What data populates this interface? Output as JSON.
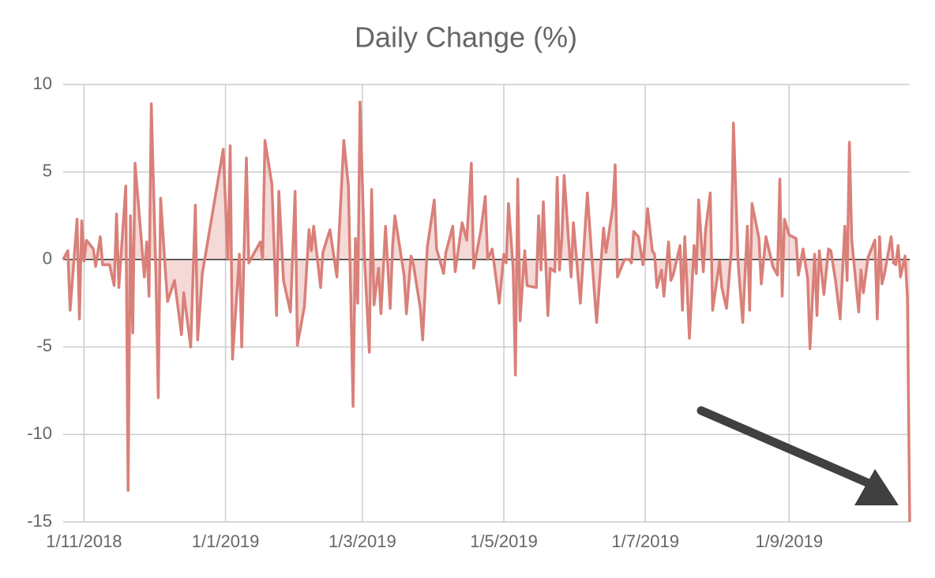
{
  "chart_data": {
    "type": "line",
    "title": "Daily Change (%)",
    "x": [
      "2018-10-23",
      "2018-10-25",
      "2018-10-26",
      "2018-10-29",
      "2018-10-30",
      "2018-10-31",
      "2018-11-01",
      "2018-11-02",
      "2018-11-05",
      "2018-11-06",
      "2018-11-08",
      "2018-11-09",
      "2018-11-12",
      "2018-11-14",
      "2018-11-15",
      "2018-11-16",
      "2018-11-19",
      "2018-11-20",
      "2018-11-21",
      "2018-11-22",
      "2018-11-23",
      "2018-11-27",
      "2018-11-28",
      "2018-11-29",
      "2018-11-30",
      "2018-12-02",
      "2018-12-03",
      "2018-12-04",
      "2018-12-06",
      "2018-12-07",
      "2018-12-10",
      "2018-12-13",
      "2018-12-14",
      "2018-12-17",
      "2018-12-19",
      "2018-12-20",
      "2018-12-22",
      "2018-12-31",
      "2019-01-02",
      "2019-01-03",
      "2019-01-04",
      "2019-01-07",
      "2019-01-08",
      "2019-01-10",
      "2019-01-11",
      "2019-01-16",
      "2019-01-17",
      "2019-01-18",
      "2019-01-21",
      "2019-01-23",
      "2019-01-24",
      "2019-01-26",
      "2019-01-29",
      "2019-01-31",
      "2019-02-01",
      "2019-02-04",
      "2019-02-06",
      "2019-02-07",
      "2019-02-08",
      "2019-02-11",
      "2019-02-12",
      "2019-02-15",
      "2019-02-18",
      "2019-02-21",
      "2019-02-23",
      "2019-02-25",
      "2019-02-26",
      "2019-02-27",
      "2019-02-28",
      "2019-03-02",
      "2019-03-04",
      "2019-03-05",
      "2019-03-06",
      "2019-03-08",
      "2019-03-09",
      "2019-03-11",
      "2019-03-13",
      "2019-03-14",
      "2019-03-15",
      "2019-03-19",
      "2019-03-20",
      "2019-03-22",
      "2019-03-23",
      "2019-03-26",
      "2019-03-27",
      "2019-03-29",
      "2019-04-01",
      "2019-04-02",
      "2019-04-05",
      "2019-04-06",
      "2019-04-09",
      "2019-04-10",
      "2019-04-13",
      "2019-04-15",
      "2019-04-17",
      "2019-04-18",
      "2019-04-21",
      "2019-04-23",
      "2019-04-24",
      "2019-04-26",
      "2019-04-29",
      "2019-05-01",
      "2019-05-02",
      "2019-05-03",
      "2019-05-05",
      "2019-05-06",
      "2019-05-07",
      "2019-05-08",
      "2019-05-10",
      "2019-05-11",
      "2019-05-15",
      "2019-05-16",
      "2019-05-17",
      "2019-05-18",
      "2019-05-20",
      "2019-05-21",
      "2019-05-23",
      "2019-05-24",
      "2019-05-25",
      "2019-05-26",
      "2019-05-27",
      "2019-05-30",
      "2019-05-31",
      "2019-06-03",
      "2019-06-06",
      "2019-06-08",
      "2019-06-10",
      "2019-06-13",
      "2019-06-14",
      "2019-06-17",
      "2019-06-18",
      "2019-06-19",
      "2019-06-22",
      "2019-06-24",
      "2019-06-25",
      "2019-06-26",
      "2019-06-28",
      "2019-06-30",
      "2019-07-02",
      "2019-07-04",
      "2019-07-05",
      "2019-07-06",
      "2019-07-08",
      "2019-07-09",
      "2019-07-11",
      "2019-07-12",
      "2019-07-13",
      "2019-07-16",
      "2019-07-17",
      "2019-07-18",
      "2019-07-20",
      "2019-07-22",
      "2019-07-23",
      "2019-07-24",
      "2019-07-26",
      "2019-07-27",
      "2019-07-29",
      "2019-07-30",
      "2019-08-02",
      "2019-08-03",
      "2019-08-05",
      "2019-08-07",
      "2019-08-08",
      "2019-08-10",
      "2019-08-12",
      "2019-08-14",
      "2019-08-15",
      "2019-08-16",
      "2019-08-19",
      "2019-08-20",
      "2019-08-22",
      "2019-08-25",
      "2019-08-27",
      "2019-08-28",
      "2019-08-29",
      "2019-08-30",
      "2019-09-01",
      "2019-09-04",
      "2019-09-05",
      "2019-09-07",
      "2019-09-09",
      "2019-09-10",
      "2019-09-12",
      "2019-09-13",
      "2019-09-14",
      "2019-09-16",
      "2019-09-18",
      "2019-09-19",
      "2019-09-21",
      "2019-09-23",
      "2019-09-25",
      "2019-09-26",
      "2019-09-27",
      "2019-09-28",
      "2019-10-01",
      "2019-10-02",
      "2019-10-03",
      "2019-10-05",
      "2019-10-08",
      "2019-10-09",
      "2019-10-10",
      "2019-10-11",
      "2019-10-12",
      "2019-10-15",
      "2019-10-16",
      "2019-10-17",
      "2019-10-18",
      "2019-10-19",
      "2019-10-21",
      "2019-10-22",
      "2019-10-23"
    ],
    "values": [
      0,
      0.5,
      -2.9,
      2.3,
      -3.4,
      2.2,
      -0.1,
      1.1,
      0.6,
      -0.4,
      1.3,
      -0.3,
      -0.3,
      -1.5,
      2.6,
      -1.6,
      4.2,
      -13.2,
      2.5,
      -4.2,
      5.5,
      -1,
      1,
      -2.1,
      8.9,
      -1,
      -7.9,
      3.5,
      -0.5,
      -2.4,
      -1.2,
      -4.3,
      -1.9,
      -5,
      3.1,
      -4.6,
      -0.8,
      6.3,
      0,
      6.5,
      -5.7,
      0.3,
      -5,
      5.8,
      -0.2,
      1,
      0,
      6.8,
      4.3,
      -3.2,
      3.9,
      -1.2,
      -3,
      3.9,
      -4.9,
      -2.7,
      1.7,
      0.5,
      1.9,
      -1.6,
      0.4,
      1.7,
      -1,
      6.8,
      4.2,
      -8.4,
      1.2,
      -2.5,
      9,
      -0.1,
      -5.3,
      4,
      -2.6,
      -0.5,
      -3.1,
      1.9,
      -2.8,
      0.7,
      2.5,
      -0.9,
      -3.1,
      0.2,
      -0.3,
      -2.8,
      -4.6,
      0.7,
      3.4,
      0.6,
      -0.8,
      0.4,
      1.9,
      -0.7,
      2.1,
      1.1,
      5.5,
      -0.5,
      1.6,
      3.6,
      0,
      0.6,
      -2.5,
      0.3,
      -0.2,
      3.2,
      -0.5,
      -6.6,
      4.6,
      -3.5,
      0.5,
      -1.5,
      -1.6,
      2.5,
      -0.6,
      3.3,
      -3.2,
      -0.5,
      -0.7,
      4.7,
      -0.6,
      1.2,
      4.8,
      -1,
      2.1,
      -2.5,
      3.8,
      0,
      -3.6,
      1.8,
      0.4,
      3,
      5.4,
      -1,
      0,
      0,
      -0.2,
      1.6,
      1.3,
      -0.3,
      2.9,
      0.5,
      0.3,
      -1.6,
      -0.6,
      -2.1,
      1,
      -1.2,
      -0.9,
      0.8,
      -2.9,
      1.3,
      -4.5,
      0.8,
      -0.8,
      3.4,
      -0.7,
      1.7,
      3.8,
      -2.9,
      -0.1,
      -1.6,
      -2.8,
      0.4,
      7.8,
      -0.2,
      -3.6,
      1.9,
      -2.9,
      3.2,
      1.2,
      -1.4,
      1.3,
      -0.4,
      -0.9,
      4.6,
      -2.1,
      2.3,
      1.4,
      1.2,
      -0.9,
      0.6,
      -1.1,
      -5.1,
      0.3,
      -3.2,
      0.5,
      -2,
      0.6,
      0.5,
      -1.2,
      -3.4,
      1.9,
      -1.2,
      6.7,
      1.1,
      -3,
      -0.6,
      -1.9,
      0.1,
      1.1,
      -3.4,
      1.3,
      -1.4,
      -0.9,
      1.3,
      -0.2,
      -0.3,
      0.8,
      -1,
      0.2,
      -2.2,
      -15
    ],
    "color": "#d98079",
    "xlim": [
      "2018-10-23",
      "2019-10-23"
    ],
    "xticks": [
      {
        "value": "2018-11-01",
        "label": "1/11/2018"
      },
      {
        "value": "2019-01-01",
        "label": "1/1/2019"
      },
      {
        "value": "2019-03-01",
        "label": "1/3/2019"
      },
      {
        "value": "2019-05-01",
        "label": "1/5/2019"
      },
      {
        "value": "2019-07-01",
        "label": "1/7/2019"
      },
      {
        "value": "2019-09-01",
        "label": "1/9/2019"
      }
    ],
    "ylim": [
      -15,
      10
    ],
    "yticks": [
      -15,
      -10,
      -5,
      0,
      5,
      10
    ],
    "grid": true
  }
}
